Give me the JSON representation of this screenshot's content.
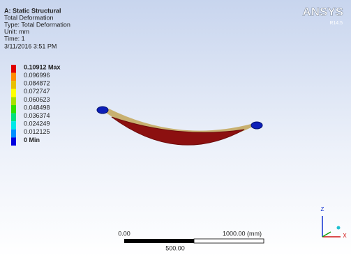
{
  "header": {
    "title": "A: Static Structural",
    "lines": [
      "Total Deformation",
      "Type: Total Deformation",
      "Unit: mm",
      "Time: 1",
      "3/11/2016 3:51 PM"
    ]
  },
  "legend": {
    "items": [
      "0.10912 Max",
      "0.096996",
      "0.084872",
      "0.072747",
      "0.060623",
      "0.048498",
      "0.036374",
      "0.024249",
      "0.012125",
      "0 Min"
    ]
  },
  "logo": {
    "name": "ANSYS",
    "release": "R14.5"
  },
  "scale_bar": {
    "start": "0.00",
    "end": "1000.00 (mm)",
    "middle": "500.00"
  },
  "triad": {
    "z": "Z",
    "x": "X"
  }
}
